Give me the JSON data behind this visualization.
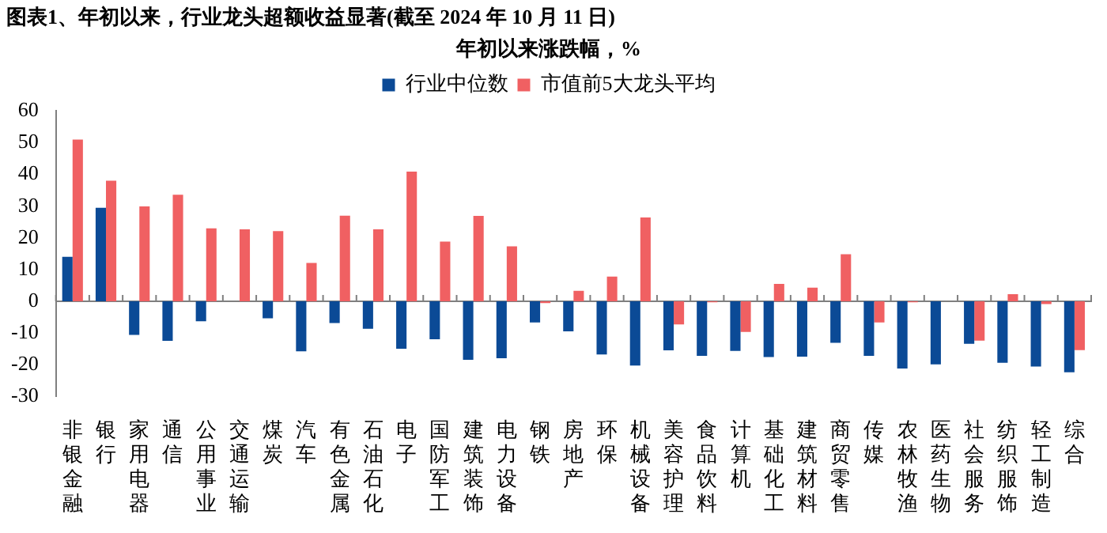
{
  "chart_data": {
    "type": "bar",
    "title": "图表1、年初以来，行业龙头超额收益显著(截至 2024 年 10 月 11 日)",
    "subtitle": "年初以来涨跌幅，%",
    "categories": [
      "非银金融",
      "银行",
      "家用电器",
      "通信",
      "公用事业",
      "交通运输",
      "煤炭",
      "汽车",
      "有色金属",
      "石油石化",
      "电子",
      "国防军工",
      "建筑装饰",
      "电力设备",
      "钢铁",
      "房地产",
      "环保",
      "机械设备",
      "美容护理",
      "食品饮料",
      "计算机",
      "基础化工",
      "建筑材料",
      "商贸零售",
      "传媒",
      "农林牧渔",
      "医药生物",
      "社会服务",
      "纺织服饰",
      "轻工制造",
      "综合"
    ],
    "series": [
      {
        "name": "行业中位数",
        "color": "#0b4a96",
        "values": [
          14,
          29.5,
          -10.6,
          -12.5,
          -6.3,
          0,
          -5.4,
          -15.8,
          -6.9,
          -8.7,
          -15,
          -12,
          -18.5,
          -18,
          -6.7,
          -9.5,
          -16.8,
          -20.3,
          -15.5,
          -17.2,
          -15.7,
          -17.6,
          -17.5,
          -13.1,
          -17.2,
          -21.2,
          -19.9,
          -13.4,
          -19.4,
          -20.6,
          -22.4
        ]
      },
      {
        "name": "市值前5大龙头平均",
        "color": "#f06062",
        "values": [
          51,
          38,
          29.9,
          33.6,
          23,
          22.7,
          22.1,
          12.1,
          27,
          22.7,
          40.9,
          18.8,
          26.9,
          17.3,
          -0.6,
          3.3,
          7.8,
          26.4,
          -7.3,
          -0.3,
          -9.7,
          5.5,
          4.3,
          14.8,
          -6.7,
          -0.3,
          0,
          -12.4,
          2.2,
          -0.9,
          -15.4
        ]
      }
    ],
    "ylim": [
      -30,
      60
    ],
    "yticks": [
      -30,
      -20,
      -10,
      0,
      10,
      20,
      30,
      40,
      50,
      60
    ],
    "legend": "top"
  }
}
